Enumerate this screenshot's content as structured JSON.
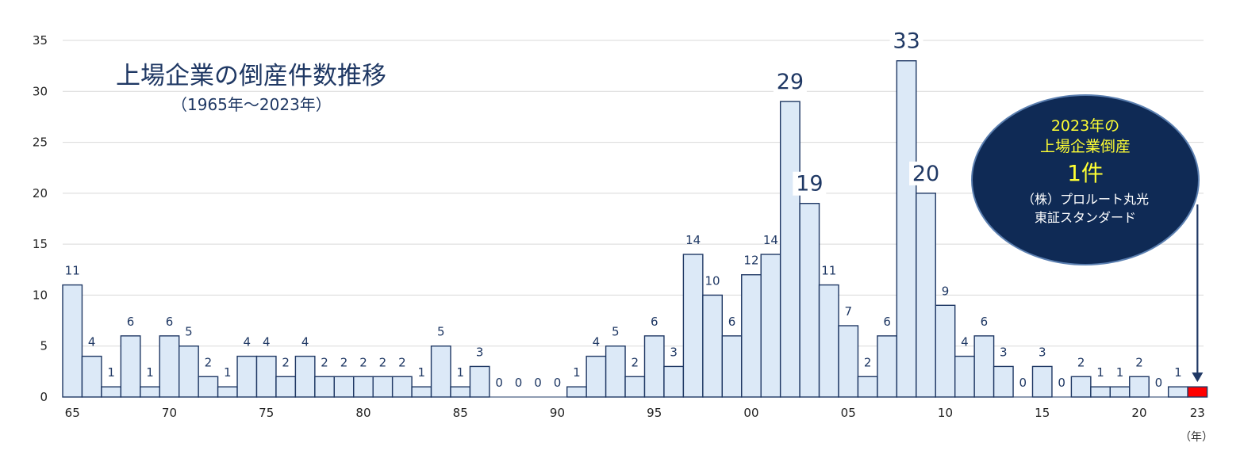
{
  "chart_data": {
    "type": "bar",
    "title": "上場企業の倒産件数推移",
    "subtitle": "（1965年～2023年）",
    "xlabel": "（年）",
    "ylabel": "",
    "ylim": [
      0,
      35
    ],
    "yticks": [
      "0",
      "5",
      "10",
      "15",
      "20",
      "25",
      "30",
      "35"
    ],
    "grid": true,
    "categories": [
      "65",
      "66",
      "67",
      "68",
      "69",
      "70",
      "71",
      "72",
      "73",
      "74",
      "75",
      "76",
      "77",
      "78",
      "79",
      "80",
      "81",
      "82",
      "83",
      "84",
      "85",
      "86",
      "87",
      "88",
      "89",
      "90",
      "91",
      "92",
      "93",
      "94",
      "95",
      "96",
      "97",
      "98",
      "99",
      "00",
      "01",
      "02",
      "03",
      "04",
      "05",
      "06",
      "07",
      "08",
      "09",
      "10",
      "11",
      "12",
      "13",
      "14",
      "15",
      "16",
      "17",
      "18",
      "19",
      "20",
      "21",
      "22",
      "23"
    ],
    "tick_labels": {
      "65": "65",
      "70": "70",
      "75": "75",
      "80": "80",
      "85": "85",
      "90": "90",
      "95": "95",
      "00": "00",
      "05": "05",
      "10": "10",
      "15": "15",
      "20": "20",
      "23": "23"
    },
    "values": [
      11,
      4,
      1,
      6,
      1,
      6,
      5,
      2,
      1,
      4,
      4,
      2,
      4,
      2,
      2,
      2,
      2,
      2,
      1,
      5,
      1,
      3,
      0,
      0,
      0,
      0,
      1,
      4,
      5,
      2,
      6,
      3,
      14,
      10,
      6,
      12,
      14,
      29,
      19,
      11,
      7,
      2,
      6,
      33,
      20,
      9,
      4,
      6,
      3,
      0,
      3,
      0,
      2,
      1,
      1,
      2,
      0,
      1,
      1
    ],
    "bar_color": "#dce9f7",
    "bar_edge_color": "#1f3864",
    "highlight_category": "23",
    "highlight_color": "#ff0000",
    "big_labels": [
      "02",
      "03",
      "08",
      "09"
    ],
    "callout": {
      "line1": "2023年の",
      "line2": "上場企業倒産",
      "line3": "1件",
      "line4": "（株）プロルート丸光",
      "line5": "東証スタンダード",
      "fill_color": "#0f2a55",
      "edge_color": "#5b7fb0",
      "text_highlight_color": "#ffff33",
      "text_color": "#ffffff"
    }
  }
}
